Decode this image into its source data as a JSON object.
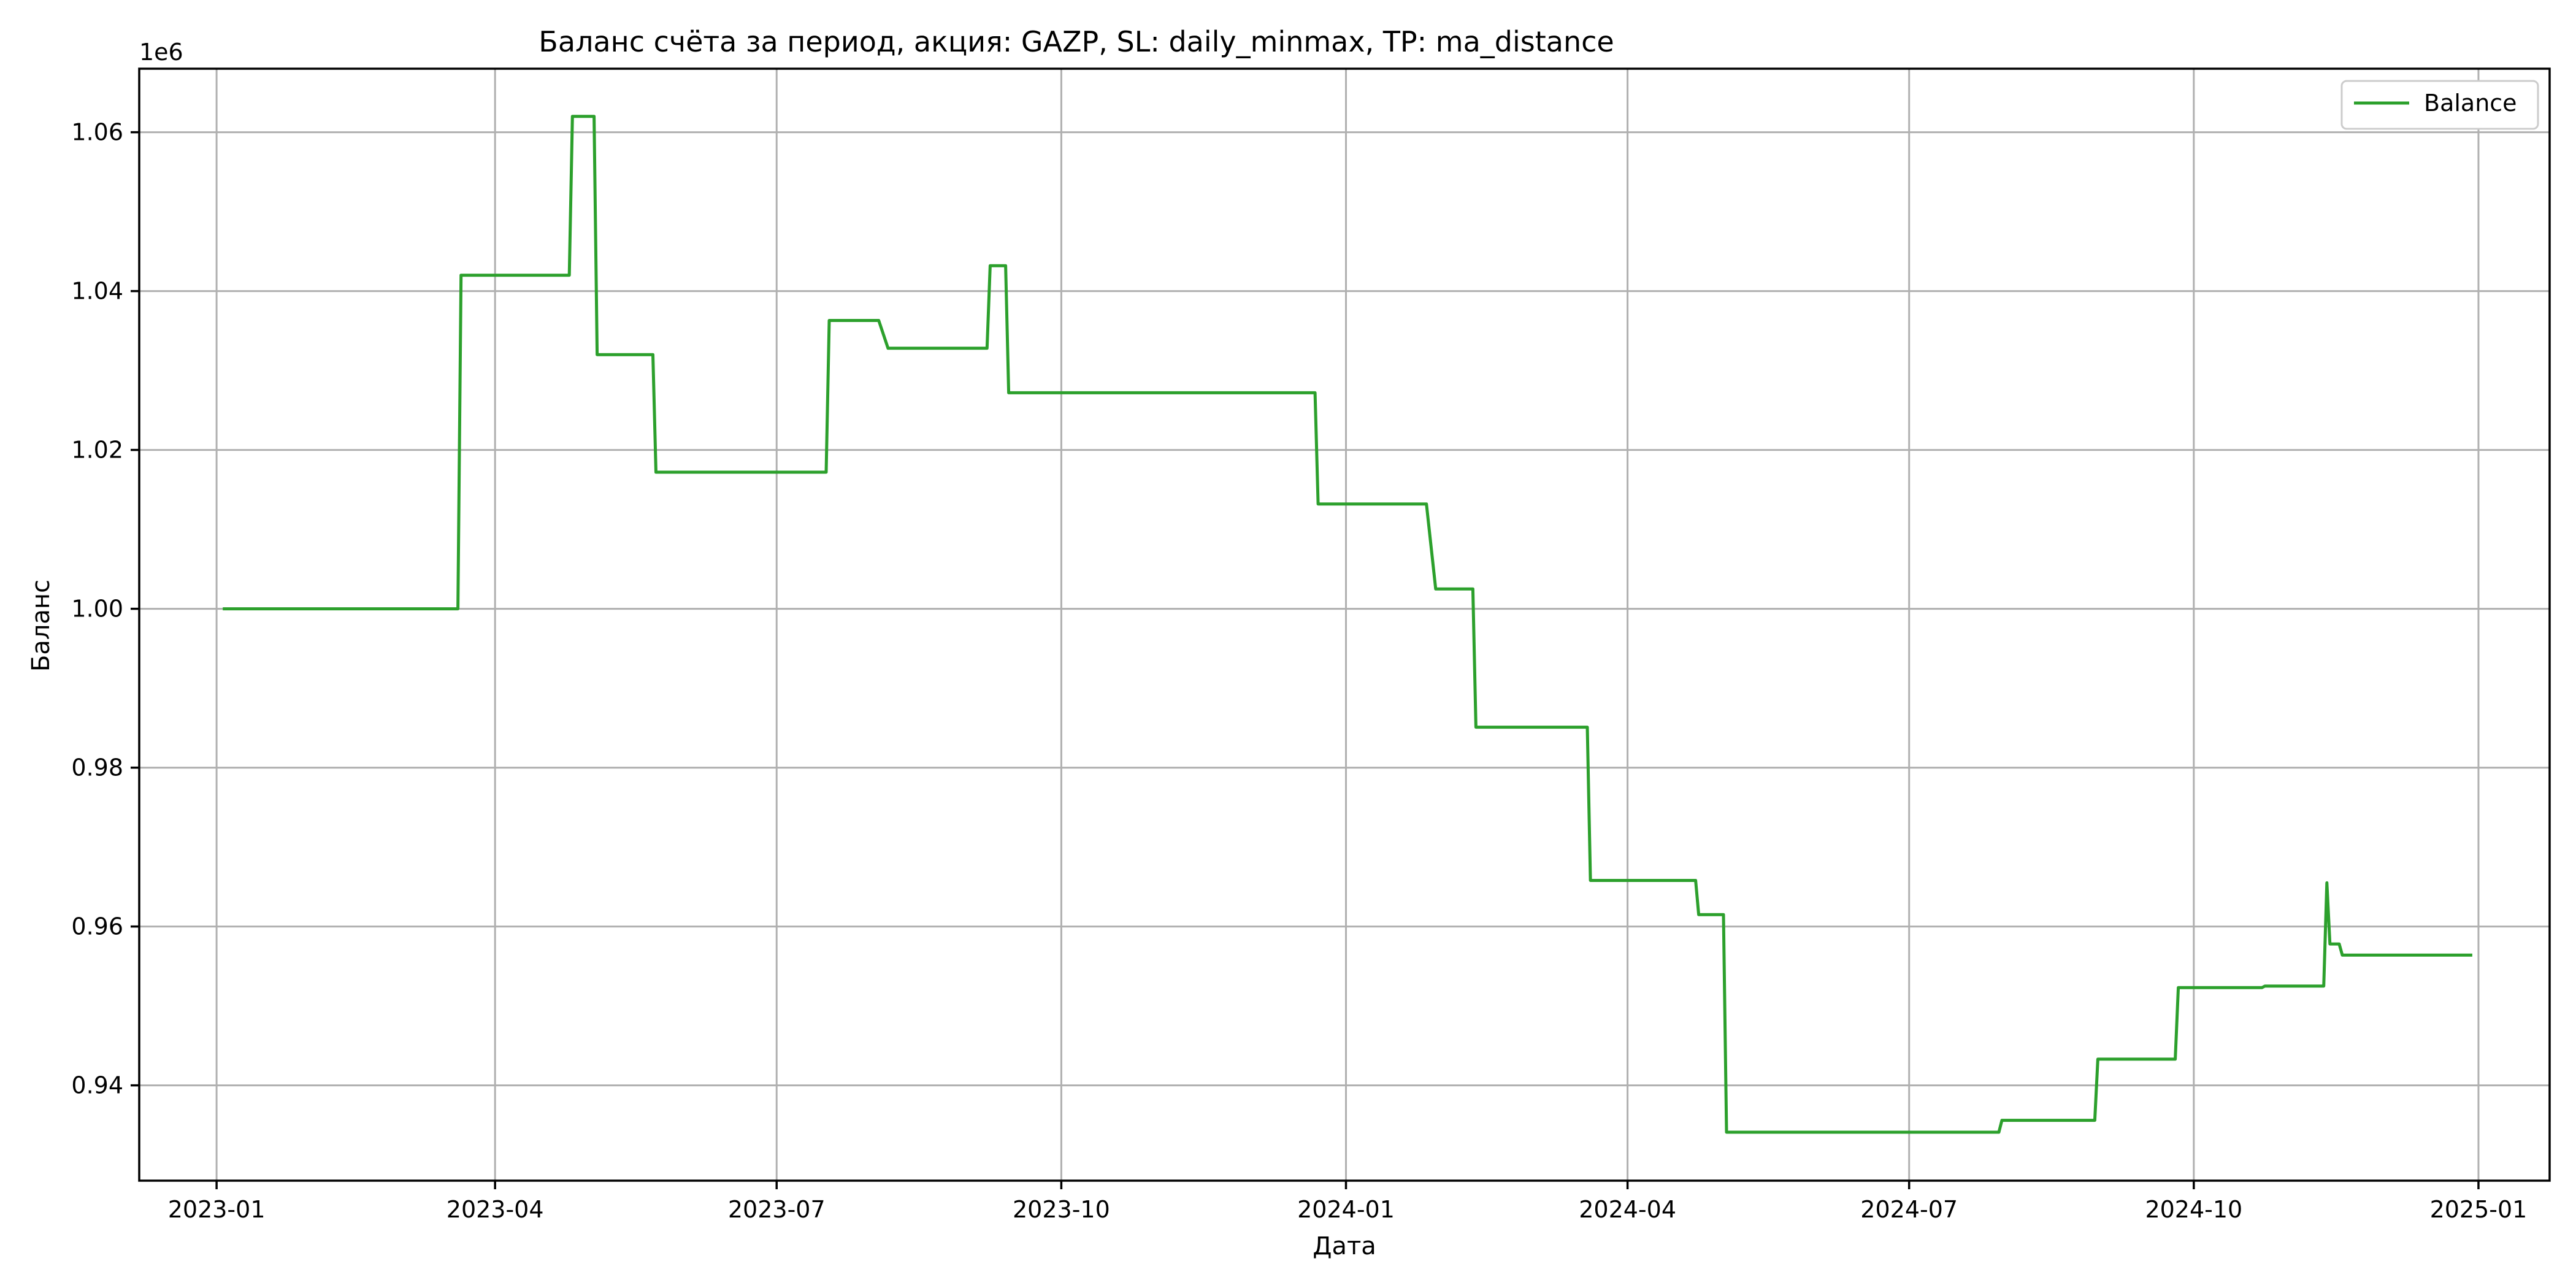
{
  "chart_data": {
    "type": "line",
    "title": "Баланс счёта за период, акция: GAZP, SL: daily_minmax, TP: ma_distance",
    "xlabel": "Дата",
    "ylabel": "Баланс",
    "y_offset_label": "1e6",
    "y_multiplier": 1000000,
    "xlim": [
      "2022-12-07",
      "2025-01-24"
    ],
    "ylim": [
      928000,
      1068000
    ],
    "x_ticks": [
      "2023-01-01",
      "2023-04-01",
      "2023-07-01",
      "2023-10-01",
      "2024-01-01",
      "2024-04-01",
      "2024-07-01",
      "2024-10-01",
      "2025-01-01"
    ],
    "x_tick_labels": [
      "2023-01",
      "2023-04",
      "2023-07",
      "2023-10",
      "2024-01",
      "2024-04",
      "2024-07",
      "2024-10",
      "2025-01"
    ],
    "y_ticks": [
      940000,
      960000,
      980000,
      1000000,
      1020000,
      1040000,
      1060000
    ],
    "y_tick_labels": [
      "0.94",
      "0.96",
      "0.98",
      "1.00",
      "1.02",
      "1.04",
      "1.06"
    ],
    "grid": true,
    "legend_position": "top-right",
    "series": [
      {
        "name": "Balance",
        "color": "#2ca02c",
        "points": [
          [
            "2023-01-03",
            1000000
          ],
          [
            "2023-03-20",
            1000000
          ],
          [
            "2023-03-21",
            1042000
          ],
          [
            "2023-04-25",
            1042000
          ],
          [
            "2023-04-26",
            1062000
          ],
          [
            "2023-05-03",
            1062000
          ],
          [
            "2023-05-04",
            1032000
          ],
          [
            "2023-05-22",
            1032000
          ],
          [
            "2023-05-23",
            1017200
          ],
          [
            "2023-07-17",
            1017200
          ],
          [
            "2023-07-18",
            1036300
          ],
          [
            "2023-08-03",
            1036300
          ],
          [
            "2023-08-06",
            1032800
          ],
          [
            "2023-09-07",
            1032800
          ],
          [
            "2023-09-08",
            1043200
          ],
          [
            "2023-09-13",
            1043200
          ],
          [
            "2023-09-14",
            1027200
          ],
          [
            "2023-12-22",
            1027200
          ],
          [
            "2023-12-23",
            1013200
          ],
          [
            "2024-01-27",
            1013200
          ],
          [
            "2024-01-30",
            1002500
          ],
          [
            "2024-02-11",
            1002500
          ],
          [
            "2024-02-12",
            985100
          ],
          [
            "2024-03-19",
            985100
          ],
          [
            "2024-03-20",
            965800
          ],
          [
            "2024-04-23",
            965800
          ],
          [
            "2024-04-24",
            961500
          ],
          [
            "2024-05-02",
            961500
          ],
          [
            "2024-05-03",
            934100
          ],
          [
            "2024-07-30",
            934100
          ],
          [
            "2024-07-31",
            935600
          ],
          [
            "2024-08-30",
            935600
          ],
          [
            "2024-08-31",
            943300
          ],
          [
            "2024-09-25",
            943300
          ],
          [
            "2024-09-26",
            952300
          ],
          [
            "2024-10-23",
            952300
          ],
          [
            "2024-10-24",
            952500
          ],
          [
            "2024-11-12",
            952500
          ],
          [
            "2024-11-13",
            965500
          ],
          [
            "2024-11-14",
            957800
          ],
          [
            "2024-11-17",
            957800
          ],
          [
            "2024-11-18",
            956400
          ],
          [
            "2024-12-30",
            956400
          ]
        ]
      }
    ]
  }
}
